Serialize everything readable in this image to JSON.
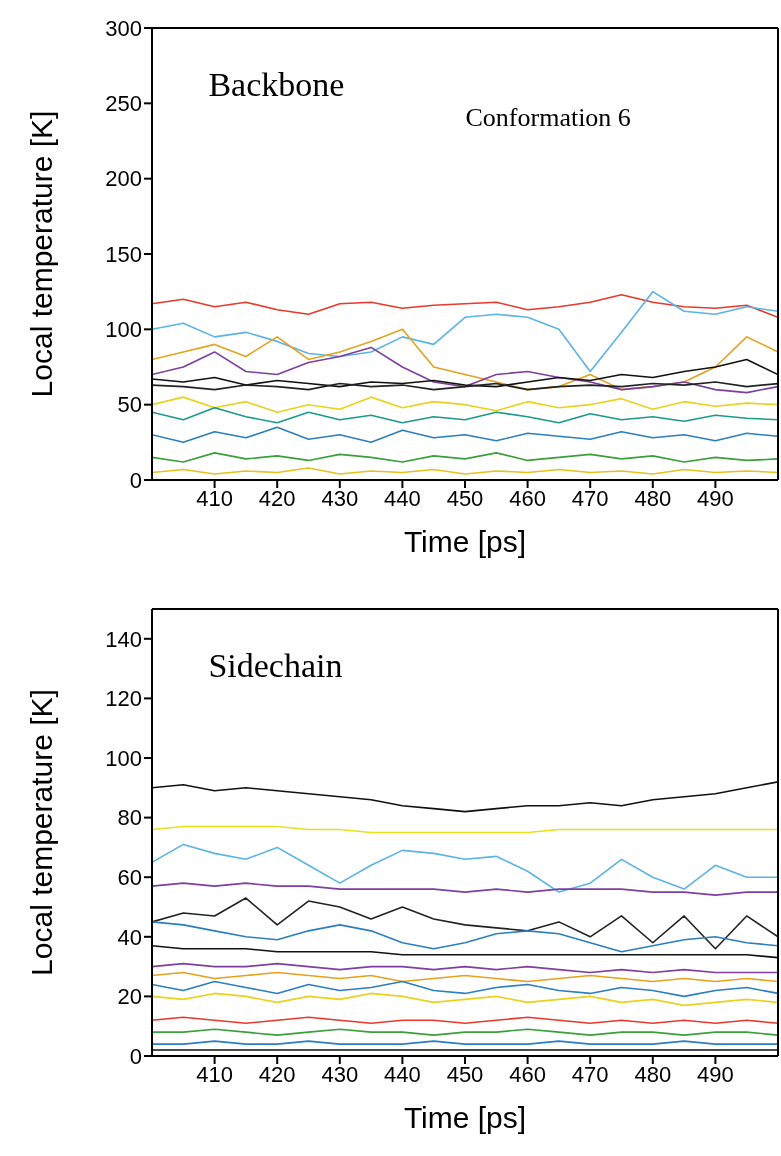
{
  "chart_data": [
    {
      "type": "line",
      "xlabel": "Time [ps]",
      "ylabel": "Local temperature [K]",
      "xlim": [
        400,
        500
      ],
      "xticks": [
        410,
        420,
        430,
        440,
        450,
        460,
        470,
        480,
        490
      ],
      "ylim": [
        0,
        300
      ],
      "yticks": [
        0,
        50,
        100,
        150,
        200,
        250,
        300
      ],
      "line_style": "solid",
      "annotations": [
        "Backbone",
        "Conformation 6"
      ],
      "x": [
        400,
        405,
        410,
        415,
        420,
        425,
        430,
        435,
        440,
        445,
        450,
        455,
        460,
        465,
        470,
        475,
        480,
        485,
        490,
        495,
        500
      ],
      "series": [
        {
          "color": "#e8392c",
          "values": [
            117,
            120,
            115,
            118,
            113,
            110,
            117,
            118,
            114,
            116,
            117,
            118,
            113,
            115,
            118,
            123,
            118,
            115,
            114,
            116,
            108
          ]
        },
        {
          "color": "#5ab4e5",
          "values": [
            100,
            104,
            95,
            98,
            92,
            84,
            82,
            85,
            95,
            90,
            108,
            110,
            108,
            100,
            72,
            98,
            125,
            112,
            110,
            115,
            112
          ]
        },
        {
          "color": "#e5a21c",
          "values": [
            80,
            85,
            90,
            82,
            95,
            80,
            85,
            92,
            100,
            75,
            70,
            65,
            60,
            62,
            70,
            60,
            62,
            65,
            75,
            95,
            85
          ]
        },
        {
          "color": "#7e3fa0",
          "values": [
            70,
            75,
            85,
            72,
            70,
            78,
            82,
            88,
            75,
            65,
            62,
            70,
            72,
            68,
            65,
            60,
            62,
            65,
            60,
            58,
            62
          ]
        },
        {
          "color": "#111111",
          "values": [
            67,
            65,
            68,
            63,
            66,
            64,
            62,
            65,
            64,
            66,
            63,
            62,
            65,
            68,
            66,
            70,
            68,
            72,
            75,
            80,
            70
          ]
        },
        {
          "color": "#222222",
          "values": [
            63,
            62,
            60,
            63,
            62,
            60,
            64,
            62,
            63,
            60,
            62,
            64,
            60,
            62,
            63,
            62,
            64,
            63,
            65,
            62,
            64
          ]
        },
        {
          "color": "#e8d21c",
          "values": [
            50,
            55,
            48,
            52,
            45,
            50,
            47,
            55,
            48,
            52,
            50,
            46,
            52,
            48,
            50,
            54,
            47,
            52,
            49,
            51,
            50
          ]
        },
        {
          "color": "#1a9a8a",
          "values": [
            45,
            40,
            48,
            42,
            38,
            45,
            40,
            43,
            38,
            42,
            40,
            45,
            42,
            38,
            44,
            40,
            42,
            39,
            43,
            41,
            40
          ]
        },
        {
          "color": "#2a7fc0",
          "values": [
            30,
            25,
            32,
            28,
            35,
            27,
            30,
            25,
            33,
            28,
            30,
            26,
            31,
            29,
            27,
            32,
            28,
            30,
            26,
            31,
            29
          ]
        },
        {
          "color": "#3aa03a",
          "values": [
            15,
            12,
            18,
            14,
            16,
            13,
            17,
            15,
            12,
            16,
            14,
            18,
            13,
            15,
            17,
            14,
            16,
            12,
            15,
            13,
            14
          ]
        },
        {
          "color": "#e5c21c",
          "values": [
            5,
            7,
            4,
            6,
            5,
            8,
            4,
            6,
            5,
            7,
            4,
            6,
            5,
            7,
            5,
            6,
            4,
            7,
            5,
            6,
            5
          ]
        }
      ]
    },
    {
      "type": "line",
      "xlabel": "Time [ps]",
      "ylabel": "Local temperature [K]",
      "xlim": [
        400,
        500
      ],
      "xticks": [
        410,
        420,
        430,
        440,
        450,
        460,
        470,
        480,
        490
      ],
      "ylim": [
        0,
        150
      ],
      "yticks": [
        0,
        20,
        40,
        60,
        80,
        100,
        120,
        140
      ],
      "line_style": "solid",
      "annotations": [
        "Sidechain"
      ],
      "x": [
        400,
        405,
        410,
        415,
        420,
        425,
        430,
        435,
        440,
        445,
        450,
        455,
        460,
        465,
        470,
        475,
        480,
        485,
        490,
        495,
        500
      ],
      "series": [
        {
          "color": "#111111",
          "values": [
            90,
            91,
            89,
            90,
            89,
            88,
            87,
            86,
            84,
            83,
            82,
            83,
            84,
            84,
            85,
            84,
            86,
            87,
            88,
            90,
            92
          ]
        },
        {
          "color": "#e8e01c",
          "values": [
            76,
            77,
            77,
            77,
            77,
            76,
            76,
            75,
            75,
            75,
            75,
            75,
            75,
            76,
            76,
            76,
            76,
            76,
            76,
            76,
            76
          ]
        },
        {
          "color": "#5ab4e5",
          "values": [
            65,
            71,
            68,
            66,
            70,
            64,
            58,
            64,
            69,
            68,
            66,
            67,
            62,
            55,
            58,
            66,
            60,
            56,
            64,
            60,
            60
          ]
        },
        {
          "color": "#7e3fa0",
          "values": [
            57,
            58,
            57,
            58,
            57,
            57,
            56,
            56,
            56,
            56,
            55,
            56,
            55,
            56,
            56,
            56,
            55,
            55,
            54,
            55,
            55
          ]
        },
        {
          "color": "#222222",
          "values": [
            45,
            48,
            47,
            53,
            44,
            52,
            50,
            46,
            50,
            46,
            44,
            43,
            42,
            45,
            40,
            47,
            38,
            47,
            36,
            47,
            40
          ]
        },
        {
          "color": "#2a7fc0",
          "values": [
            45,
            44,
            42,
            40,
            39,
            42,
            44,
            42,
            38,
            36,
            38,
            41,
            42,
            41,
            38,
            35,
            37,
            39,
            40,
            38,
            37
          ]
        },
        {
          "color": "#111111",
          "values": [
            37,
            36,
            36,
            36,
            35,
            35,
            35,
            35,
            34,
            34,
            34,
            34,
            34,
            34,
            34,
            34,
            34,
            34,
            34,
            34,
            33
          ]
        },
        {
          "color": "#7e3fa0",
          "values": [
            30,
            31,
            30,
            30,
            31,
            30,
            29,
            30,
            30,
            29,
            30,
            29,
            30,
            29,
            28,
            29,
            28,
            29,
            28,
            28,
            28
          ]
        },
        {
          "color": "#e5a21c",
          "values": [
            27,
            28,
            26,
            27,
            28,
            27,
            26,
            27,
            25,
            26,
            27,
            26,
            25,
            26,
            27,
            26,
            25,
            26,
            25,
            26,
            25
          ]
        },
        {
          "color": "#2a7fc0",
          "values": [
            24,
            22,
            25,
            23,
            21,
            24,
            22,
            23,
            25,
            22,
            21,
            23,
            24,
            22,
            21,
            23,
            22,
            20,
            22,
            23,
            21
          ]
        },
        {
          "color": "#e8d21c",
          "values": [
            20,
            19,
            21,
            20,
            18,
            20,
            19,
            21,
            20,
            18,
            19,
            20,
            18,
            19,
            20,
            18,
            19,
            17,
            18,
            19,
            18
          ]
        },
        {
          "color": "#e8392c",
          "values": [
            12,
            13,
            12,
            11,
            12,
            13,
            12,
            11,
            12,
            12,
            11,
            12,
            13,
            12,
            11,
            12,
            11,
            12,
            11,
            12,
            11
          ]
        },
        {
          "color": "#3aa03a",
          "values": [
            8,
            8,
            9,
            8,
            7,
            8,
            9,
            8,
            8,
            7,
            8,
            8,
            9,
            8,
            7,
            8,
            8,
            7,
            8,
            8,
            7
          ]
        },
        {
          "color": "#2a7fc0",
          "values": [
            4,
            4,
            5,
            4,
            4,
            5,
            4,
            4,
            4,
            5,
            4,
            4,
            4,
            5,
            4,
            4,
            4,
            5,
            4,
            4,
            4
          ]
        },
        {
          "color": "#111111",
          "values": [
            2,
            2,
            2,
            2,
            2,
            2,
            2,
            2,
            2,
            2,
            2,
            2,
            2,
            2,
            2,
            2,
            2,
            2,
            2,
            2,
            2
          ]
        }
      ]
    }
  ]
}
